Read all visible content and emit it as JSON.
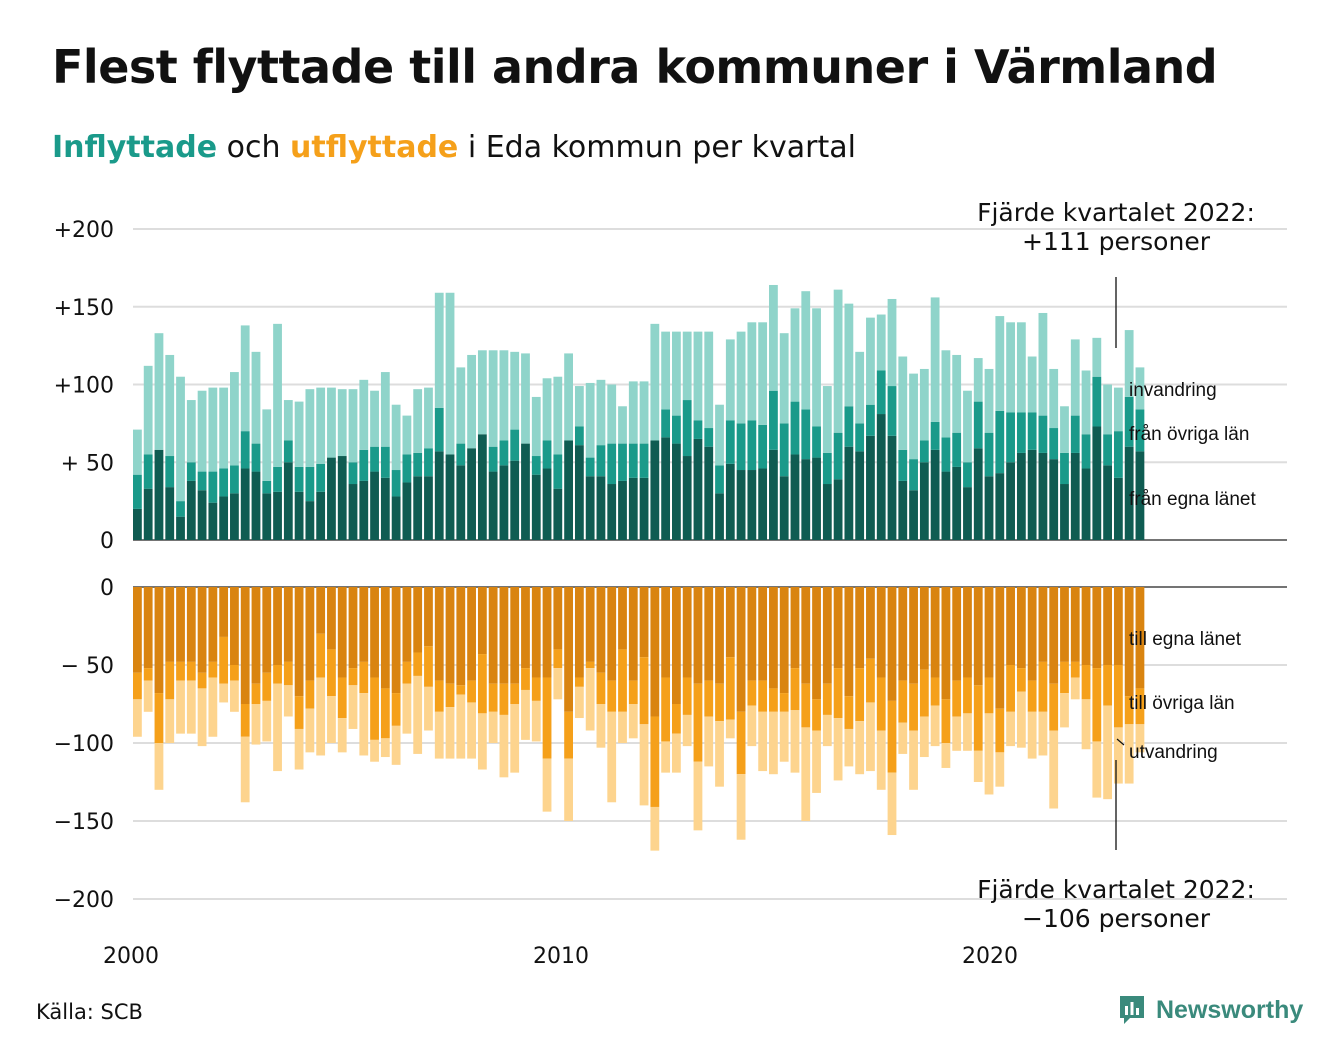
{
  "title": "Flest flyttade till andra kommuner i Värmland",
  "subtitle": {
    "inflyttade": "Inflyttade",
    "och": "och",
    "utflyttade": "utflyttade",
    "rest": "i Eda kommun per kvartal"
  },
  "annotations": {
    "top_line1": "Fjärde kvartalet 2022:",
    "top_line2": "+111 personer",
    "bottom_line1": "Fjärde kvartalet 2022:",
    "bottom_line2": "−106 personer"
  },
  "source": "Källa: SCB",
  "brand": "Newsworthy",
  "colors": {
    "in_own": "#0f5c52",
    "in_other": "#1a9a8a",
    "in_immig": "#8fd4ca",
    "out_own": "#d98410",
    "out_other": "#f5a01a",
    "out_emig": "#fdd48e",
    "subtitle_in": "#1a9a8a",
    "subtitle_out": "#f5a01a",
    "brand": "#3a8a7c"
  },
  "chart_data": {
    "type": "bar",
    "stacked": true,
    "x_start": "2000 Q1",
    "x_end": "2022 Q4",
    "x_ticks": [
      "2000",
      "2010",
      "2020"
    ],
    "top_panel": {
      "ylim": [
        0,
        200
      ],
      "yticks": [
        "0",
        "+ 50",
        "+100",
        "+150",
        "+200"
      ],
      "series": [
        {
          "name": "från egna länet",
          "values": [
            20,
            33,
            58,
            34,
            15,
            38,
            32,
            24,
            28,
            30,
            46,
            44,
            30,
            31,
            50,
            31,
            25,
            31,
            53,
            54,
            36,
            38,
            44,
            40,
            28,
            37,
            41,
            41,
            57,
            55,
            48,
            59,
            68,
            44,
            48,
            51,
            62,
            42,
            46,
            33,
            64,
            61,
            41,
            41,
            36,
            38,
            40,
            40,
            64,
            66,
            62,
            54,
            65,
            60,
            30,
            49,
            45,
            45,
            46,
            58,
            41,
            55,
            52,
            53,
            36,
            39,
            60,
            57,
            67,
            81,
            67,
            38,
            32,
            50,
            58,
            44,
            47,
            34,
            59,
            41,
            43,
            50,
            56,
            58,
            56,
            52,
            36,
            56,
            46,
            73,
            48,
            40,
            60,
            57
          ]
        },
        {
          "name": "från övriga län",
          "values": [
            22,
            22,
            0,
            20,
            10,
            12,
            12,
            20,
            18,
            18,
            24,
            18,
            8,
            16,
            14,
            16,
            22,
            18,
            0,
            0,
            14,
            20,
            16,
            20,
            17,
            18,
            15,
            18,
            28,
            0,
            14,
            0,
            0,
            16,
            16,
            20,
            0,
            12,
            18,
            22,
            0,
            12,
            12,
            20,
            26,
            24,
            22,
            22,
            0,
            18,
            18,
            36,
            12,
            12,
            18,
            28,
            30,
            32,
            28,
            38,
            34,
            34,
            32,
            20,
            20,
            30,
            26,
            18,
            20,
            28,
            32,
            20,
            20,
            14,
            18,
            22,
            22,
            16,
            30,
            28,
            40,
            32,
            26,
            24,
            24,
            20,
            20,
            24,
            22,
            32,
            20,
            30,
            32,
            27
          ]
        },
        {
          "name": "invandring",
          "values": [
            29,
            57,
            75,
            65,
            80,
            40,
            52,
            54,
            52,
            60,
            68,
            59,
            46,
            92,
            26,
            42,
            50,
            49,
            45,
            43,
            47,
            45,
            36,
            48,
            42,
            25,
            41,
            39,
            74,
            104,
            49,
            60,
            54,
            62,
            58,
            50,
            58,
            38,
            40,
            50,
            56,
            26,
            48,
            42,
            38,
            24,
            40,
            40,
            75,
            50,
            54,
            44,
            57,
            62,
            39,
            52,
            59,
            63,
            66,
            68,
            58,
            60,
            76,
            76,
            43,
            92,
            66,
            46,
            56,
            36,
            56,
            60,
            55,
            46,
            80,
            56,
            50,
            46,
            28,
            41,
            61,
            58,
            58,
            36,
            66,
            38,
            30,
            49,
            41,
            25,
            32,
            28,
            43,
            27
          ]
        }
      ]
    },
    "bottom_panel": {
      "ylim": [
        -200,
        0
      ],
      "yticks": [
        "0",
        "− 50",
        "−100",
        "−150",
        "−200"
      ],
      "series": [
        {
          "name": "till egna länet",
          "values": [
            -55,
            -52,
            -68,
            -48,
            -48,
            -48,
            -55,
            -48,
            -32,
            -50,
            -75,
            -62,
            -55,
            -50,
            -48,
            -70,
            -60,
            -30,
            -40,
            -58,
            -52,
            -48,
            -58,
            -65,
            -68,
            -48,
            -42,
            -38,
            -60,
            -62,
            -63,
            -60,
            -43,
            -62,
            -62,
            -62,
            -52,
            -58,
            -58,
            -40,
            -80,
            -58,
            -48,
            -55,
            -60,
            -40,
            -60,
            -45,
            -83,
            -58,
            -75,
            -58,
            -62,
            -60,
            -62,
            -45,
            -80,
            -60,
            -60,
            -65,
            -68,
            -52,
            -62,
            -72,
            -62,
            -52,
            -70,
            -52,
            -46,
            -58,
            -73,
            -60,
            -62,
            -53,
            -58,
            -72,
            -60,
            -58,
            -63,
            -58,
            -78,
            -50,
            -52,
            -60,
            -48,
            -62,
            -48,
            -48,
            -50,
            -52,
            -50,
            -50,
            -70,
            -65
          ]
        },
        {
          "name": "till övriga län",
          "values": [
            -17,
            -8,
            -32,
            -24,
            -12,
            -12,
            -10,
            -10,
            -30,
            -10,
            -21,
            -13,
            -18,
            -12,
            -15,
            -21,
            -18,
            -28,
            -30,
            -26,
            -11,
            -20,
            -40,
            -32,
            -21,
            -14,
            -15,
            -26,
            -20,
            -15,
            -6,
            -14,
            -38,
            -18,
            -20,
            -13,
            -14,
            -15,
            -52,
            -12,
            -30,
            -6,
            -4,
            -20,
            -20,
            -40,
            -15,
            -43,
            -58,
            -41,
            -19,
            -24,
            -50,
            -23,
            -24,
            -40,
            -40,
            -16,
            -20,
            -15,
            -12,
            -27,
            -28,
            -20,
            -20,
            -32,
            -21,
            -34,
            -28,
            -34,
            -46,
            -27,
            -30,
            -30,
            -18,
            -28,
            -23,
            -23,
            -42,
            -23,
            -28,
            -30,
            -15,
            -20,
            -32,
            -30,
            -20,
            -10,
            -22,
            -47,
            -26,
            -40,
            -18,
            -23
          ]
        },
        {
          "name": "utvandring",
          "values": [
            -24,
            -20,
            -30,
            -28,
            -34,
            -34,
            -37,
            -38,
            -12,
            -20,
            -42,
            -26,
            -26,
            -56,
            -20,
            -26,
            -28,
            -50,
            -30,
            -22,
            -28,
            -40,
            -14,
            -12,
            -25,
            -32,
            -50,
            -28,
            -30,
            -33,
            -41,
            -36,
            -36,
            -20,
            -40,
            -44,
            -32,
            -26,
            -34,
            -20,
            -40,
            -20,
            -40,
            -28,
            -58,
            -20,
            -22,
            -52,
            -28,
            -20,
            -25,
            -20,
            -44,
            -32,
            -42,
            -12,
            -42,
            -26,
            -38,
            -40,
            -32,
            -40,
            -60,
            -40,
            -20,
            -40,
            -24,
            -34,
            -44,
            -38,
            -40,
            -20,
            -38,
            -26,
            -26,
            -16,
            -22,
            -24,
            -20,
            -52,
            -22,
            -22,
            -36,
            -30,
            -28,
            -50,
            -22,
            -14,
            -32,
            -36,
            -60,
            -36,
            -38,
            -18
          ]
        }
      ]
    },
    "legend_top": [
      "invandring",
      "från övriga län",
      "från egna länet"
    ],
    "legend_bottom": [
      "till egna länet",
      "till övriga län",
      "utvandring"
    ],
    "grid": true
  }
}
